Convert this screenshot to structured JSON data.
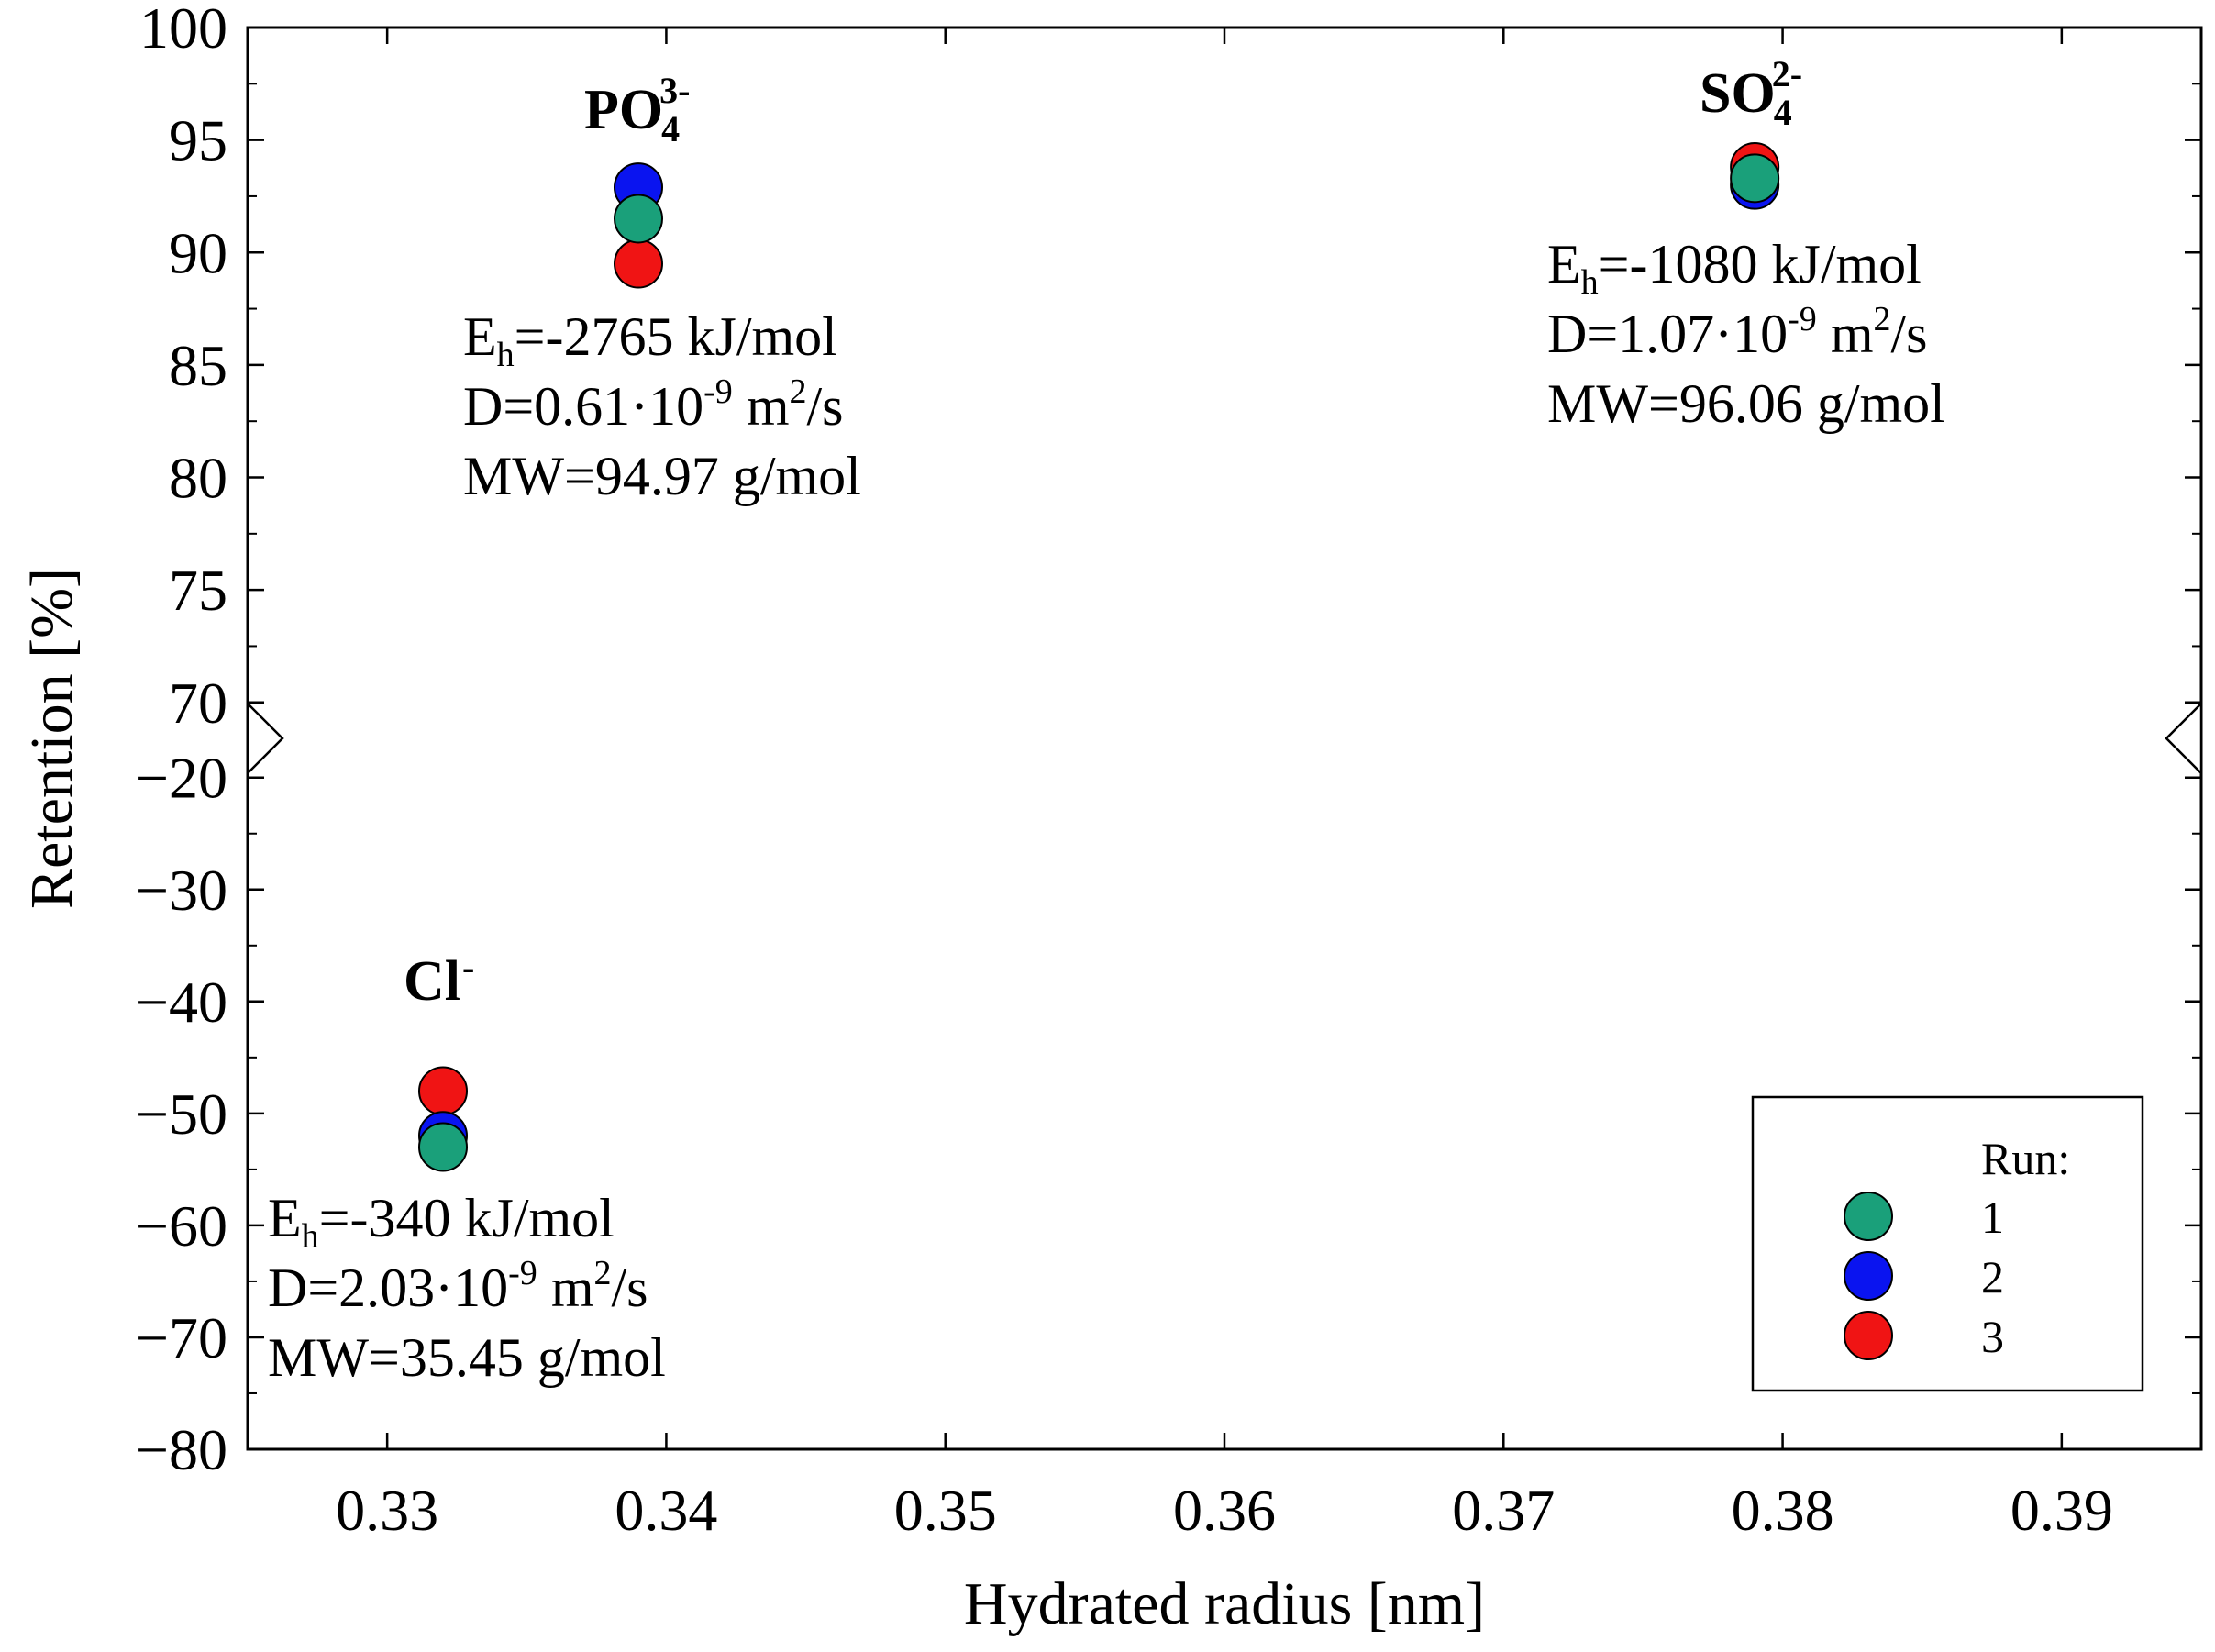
{
  "chart_data": {
    "type": "scatter",
    "xlabel": "Hydrated radius [nm]",
    "ylabel": "Retention [%]",
    "xlim": [
      0.325,
      0.395
    ],
    "x_ticks": [
      "0.33",
      "0.34",
      "0.35",
      "0.36",
      "0.37",
      "0.38",
      "0.39"
    ],
    "y_axis_break": {
      "upper_range": [
        70,
        100
      ],
      "lower_range": [
        -80,
        -20
      ],
      "upper_ticks": [
        "70",
        "75",
        "80",
        "85",
        "90",
        "95",
        "100"
      ],
      "lower_ticks": [
        "−20",
        "−30",
        "−40",
        "−50",
        "−60",
        "−70",
        "−80"
      ]
    },
    "legend": {
      "title": "Run:",
      "position": "bottom-right",
      "entries": [
        "1",
        "2",
        "3"
      ]
    },
    "series": [
      {
        "name": "1",
        "color": "#1aa07a",
        "points": [
          {
            "x": 0.332,
            "y": -53
          },
          {
            "x": 0.339,
            "y": 91.5
          },
          {
            "x": 0.379,
            "y": 93.3
          }
        ]
      },
      {
        "name": "2",
        "color": "#0a14f0",
        "points": [
          {
            "x": 0.332,
            "y": -52
          },
          {
            "x": 0.339,
            "y": 92.9
          },
          {
            "x": 0.379,
            "y": 93.0
          }
        ]
      },
      {
        "name": "3",
        "color": "#f01414",
        "points": [
          {
            "x": 0.332,
            "y": -48
          },
          {
            "x": 0.339,
            "y": 89.5
          },
          {
            "x": 0.379,
            "y": 93.8
          }
        ]
      }
    ],
    "ions": [
      {
        "id": "po4",
        "name": "PO",
        "sub": "4",
        "sup": "3-",
        "eh_pre": "E",
        "eh_sub": "h",
        "eh_val": "=-2765 kJ/mol",
        "d_pre": "D=0.61·10",
        "d_exp": "-9",
        "d_unit": " m",
        "d_unit_exp": "2",
        "d_unit_post": "/s",
        "mw": "MW=94.97 g/mol"
      },
      {
        "id": "so4",
        "name": "SO",
        "sub": "4",
        "sup": "2-",
        "eh_pre": "E",
        "eh_sub": "h",
        "eh_val": "=-1080 kJ/mol",
        "d_pre": "D=1.07·10",
        "d_exp": "-9",
        "d_unit": " m",
        "d_unit_exp": "2",
        "d_unit_post": "/s",
        "mw": "MW=96.06 g/mol"
      },
      {
        "id": "cl",
        "name": "Cl",
        "sub": "",
        "sup": "-",
        "eh_pre": "E",
        "eh_sub": "h",
        "eh_val": "=-340 kJ/mol",
        "d_pre": "D=2.03·10",
        "d_exp": "-9",
        "d_unit": " m",
        "d_unit_exp": "2",
        "d_unit_post": "/s",
        "mw": "MW=35.45 g/mol"
      }
    ]
  }
}
